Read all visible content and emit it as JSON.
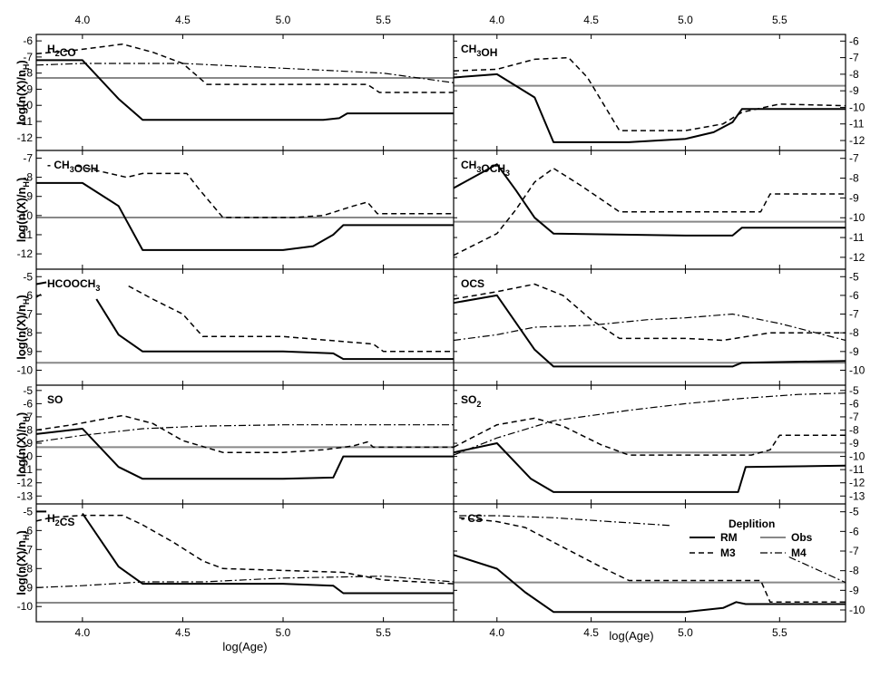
{
  "chart_data": {
    "type": "line",
    "xlabel": "log(Age)",
    "ylabel": "log(n(X)/n",
    "ylabel_sub": "H",
    "ylabel_end": ")",
    "xlim": [
      3.77,
      5.85
    ],
    "xticks": [
      4.0,
      4.5,
      5.0,
      5.5
    ],
    "xtick_labels": [
      "4.0",
      "4.5",
      "5.0",
      "5.5"
    ],
    "legend": {
      "title": "Deplition",
      "entries": [
        {
          "key": "RM",
          "label": "RM"
        },
        {
          "key": "Obs",
          "label": "Obs"
        },
        {
          "key": "M3",
          "label": "M3"
        },
        {
          "key": "M4",
          "label": "M4"
        }
      ]
    },
    "styles": {
      "RM": {
        "color": "#000000",
        "dash": "",
        "width": 2
      },
      "M3": {
        "color": "#000000",
        "dash": "6,4",
        "width": 1.5
      },
      "M4": {
        "color": "#000000",
        "dash": "8,3,2,3",
        "width": 1.2
      },
      "Obs": {
        "color": "#888888",
        "dash": "",
        "width": 2
      }
    },
    "panels": [
      {
        "label": "H",
        "sub": "2",
        "label_rest": "CO",
        "ylim": [
          -12.8,
          -5.6
        ],
        "yticks": [
          -6,
          -7,
          -8,
          -9,
          -10,
          -11,
          -12
        ],
        "obs": -8.3,
        "series": [
          {
            "name": "RM",
            "x": [
              3.77,
              4.0,
              4.18,
              4.3,
              5.0,
              5.2,
              5.28,
              5.32,
              5.85
            ],
            "y": [
              -7.2,
              -7.2,
              -9.6,
              -10.9,
              -10.9,
              -10.9,
              -10.8,
              -10.5,
              -10.5
            ]
          },
          {
            "name": "M3",
            "x": [
              3.77,
              3.95,
              4.2,
              4.35,
              4.5,
              4.62,
              5.0,
              5.42,
              5.48,
              5.85
            ],
            "y": [
              -6.8,
              -6.6,
              -6.2,
              -6.7,
              -7.4,
              -8.7,
              -8.7,
              -8.7,
              -9.2,
              -9.2
            ]
          },
          {
            "name": "M4",
            "x": [
              3.77,
              4.0,
              4.5,
              5.0,
              5.5,
              5.85
            ],
            "y": [
              -7.5,
              -7.4,
              -7.4,
              -7.7,
              -8.0,
              -8.6
            ]
          }
        ]
      },
      {
        "label": "CH",
        "sub": "3",
        "label_rest": "OH",
        "ylim": [
          -12.6,
          -5.6
        ],
        "yticks": [
          -6,
          -7,
          -8,
          -9,
          -10,
          -11,
          -12
        ],
        "obs": -8.7,
        "series": [
          {
            "name": "RM",
            "x": [
              3.77,
              4.0,
              4.2,
              4.3,
              4.7,
              5.0,
              5.15,
              5.25,
              5.3,
              5.85
            ],
            "y": [
              -8.2,
              -8.0,
              -9.4,
              -12.1,
              -12.1,
              -11.9,
              -11.5,
              -10.9,
              -10.1,
              -10.1
            ]
          },
          {
            "name": "M3",
            "x": [
              3.77,
              4.0,
              4.2,
              4.38,
              4.48,
              4.65,
              5.0,
              5.2,
              5.3,
              5.5,
              5.85
            ],
            "y": [
              -7.8,
              -7.7,
              -7.1,
              -7.0,
              -8.2,
              -11.4,
              -11.4,
              -11.0,
              -10.3,
              -9.8,
              -9.9
            ]
          }
        ]
      },
      {
        "label": "CH",
        "sub": "3",
        "label_rest": "OCH",
        "label_prefix": "- ",
        "ylim": [
          -12.8,
          -6.6
        ],
        "yticks": [
          -7,
          -8,
          -9,
          -10,
          -11,
          -12
        ],
        "obs": -10.1,
        "series": [
          {
            "name": "RM",
            "x": [
              3.77,
              4.0,
              4.18,
              4.3,
              5.0,
              5.15,
              5.25,
              5.3,
              5.85
            ],
            "y": [
              -8.3,
              -8.3,
              -9.5,
              -11.8,
              -11.8,
              -11.6,
              -11.0,
              -10.5,
              -10.5
            ]
          },
          {
            "name": "M3",
            "x": [
              3.97,
              4.05,
              4.22,
              4.3,
              4.4,
              4.52,
              4.58,
              4.7,
              5.05,
              5.2,
              5.35,
              5.42,
              5.47,
              5.85
            ],
            "y": [
              -7.4,
              -7.6,
              -8.0,
              -7.8,
              -7.8,
              -7.8,
              -8.6,
              -10.1,
              -10.1,
              -10.0,
              -9.5,
              -9.3,
              -9.9,
              -9.9
            ]
          }
        ]
      },
      {
        "label": "CH",
        "sub": "3",
        "label_rest": "OCH",
        "sub2": "3",
        "ylim": [
          -12.6,
          -6.6
        ],
        "yticks": [
          -7,
          -8,
          -9,
          -10,
          -11,
          -12
        ],
        "obs": -10.2,
        "series": [
          {
            "name": "RM",
            "x": [
              3.77,
              4.0,
              4.1,
              4.2,
              4.3,
              5.0,
              5.25,
              5.3,
              5.85
            ],
            "y": [
              -8.5,
              -7.3,
              -8.6,
              -10.0,
              -10.8,
              -10.9,
              -10.9,
              -10.5,
              -10.5
            ]
          },
          {
            "name": "M3",
            "x": [
              3.77,
              4.0,
              4.1,
              4.2,
              4.3,
              4.45,
              4.65,
              5.0,
              5.4,
              5.45,
              5.85
            ],
            "y": [
              -11.9,
              -10.8,
              -9.6,
              -8.2,
              -7.5,
              -8.4,
              -9.7,
              -9.7,
              -9.7,
              -8.8,
              -8.8
            ]
          }
        ]
      },
      {
        "label": "HCOOCH",
        "sub": "3",
        "label_rest": "",
        "ylim": [
          -10.8,
          -4.6
        ],
        "yticks": [
          -5,
          -6,
          -7,
          -8,
          -9,
          -10
        ],
        "obs": -9.6,
        "series": [
          {
            "name": "RM",
            "x": [
              4.07,
              4.18,
              4.3,
              5.0,
              5.25,
              5.3,
              5.85
            ],
            "y": [
              -6.2,
              -8.1,
              -9.0,
              -9.0,
              -9.1,
              -9.4,
              -9.4
            ]
          },
          {
            "name": "RM",
            "x": [
              3.77,
              3.82
            ],
            "y": [
              -5.4,
              -5.3
            ]
          },
          {
            "name": "M3",
            "x": [
              3.77,
              3.8
            ],
            "y": [
              -6.1,
              -5.9
            ]
          },
          {
            "name": "M3",
            "x": [
              4.23,
              4.35,
              4.5,
              4.6,
              5.0,
              5.45,
              5.5,
              5.85
            ],
            "y": [
              -5.5,
              -6.2,
              -7.0,
              -8.2,
              -8.2,
              -8.6,
              -9.0,
              -9.0
            ]
          }
        ]
      },
      {
        "label": "OCS",
        "sub": "",
        "label_rest": "",
        "ylim": [
          -10.8,
          -4.6
        ],
        "yticks": [
          -5,
          -6,
          -7,
          -8,
          -9,
          -10
        ],
        "obs": -9.6,
        "series": [
          {
            "name": "RM",
            "x": [
              3.77,
              4.0,
              4.2,
              4.3,
              5.0,
              5.25,
              5.3,
              5.85
            ],
            "y": [
              -6.4,
              -6.0,
              -8.9,
              -9.8,
              -9.8,
              -9.8,
              -9.6,
              -9.5
            ]
          },
          {
            "name": "M3",
            "x": [
              3.77,
              4.0,
              4.2,
              4.35,
              4.5,
              4.65,
              5.0,
              5.2,
              5.45,
              5.85
            ],
            "y": [
              -6.2,
              -5.8,
              -5.4,
              -6.0,
              -7.3,
              -8.3,
              -8.3,
              -8.4,
              -8.0,
              -8.0
            ]
          },
          {
            "name": "M4",
            "x": [
              3.77,
              4.0,
              4.2,
              4.5,
              4.8,
              5.0,
              5.25,
              5.5,
              5.85
            ],
            "y": [
              -8.4,
              -8.1,
              -7.7,
              -7.6,
              -7.3,
              -7.2,
              -7.0,
              -7.5,
              -8.4
            ]
          }
        ]
      },
      {
        "label": "SO",
        "sub": "",
        "label_rest": "",
        "ylim": [
          -13.6,
          -4.6
        ],
        "yticks": [
          -5,
          -6,
          -7,
          -8,
          -9,
          -10,
          -11,
          -12,
          -13
        ],
        "obs": -9.3,
        "series": [
          {
            "name": "RM",
            "x": [
              3.77,
              4.0,
              4.18,
              4.3,
              5.0,
              5.25,
              5.3,
              5.85
            ],
            "y": [
              -8.3,
              -7.9,
              -10.8,
              -11.7,
              -11.7,
              -11.6,
              -10.0,
              -10.0
            ]
          },
          {
            "name": "M3",
            "x": [
              3.77,
              3.95,
              4.2,
              4.35,
              4.5,
              4.7,
              5.0,
              5.2,
              5.35,
              5.42,
              5.45,
              5.85
            ],
            "y": [
              -8.0,
              -7.6,
              -6.9,
              -7.5,
              -8.8,
              -9.7,
              -9.7,
              -9.5,
              -9.2,
              -8.9,
              -9.3,
              -9.3
            ]
          },
          {
            "name": "M4",
            "x": [
              3.77,
              4.0,
              4.3,
              4.6,
              5.0,
              5.5,
              5.85
            ],
            "y": [
              -8.9,
              -8.4,
              -7.9,
              -7.7,
              -7.6,
              -7.6,
              -7.6
            ]
          }
        ]
      },
      {
        "label": "SO",
        "sub": "2",
        "label_rest": "",
        "ylim": [
          -13.6,
          -4.6
        ],
        "yticks": [
          -5,
          -6,
          -7,
          -8,
          -9,
          -10,
          -11,
          -12,
          -13
        ],
        "obs": -9.7,
        "series": [
          {
            "name": "RM",
            "x": [
              3.77,
              4.0,
              4.18,
              4.3,
              5.0,
              5.28,
              5.32,
              5.85
            ],
            "y": [
              -9.7,
              -9.0,
              -11.7,
              -12.7,
              -12.7,
              -12.7,
              -10.8,
              -10.7
            ]
          },
          {
            "name": "M3",
            "x": [
              3.77,
              4.0,
              4.2,
              4.35,
              4.55,
              4.7,
              5.0,
              5.35,
              5.45,
              5.5,
              5.85
            ],
            "y": [
              -9.3,
              -7.6,
              -7.1,
              -7.7,
              -9.1,
              -9.9,
              -9.9,
              -9.9,
              -9.5,
              -8.4,
              -8.4
            ]
          },
          {
            "name": "M4",
            "x": [
              3.77,
              4.0,
              4.3,
              4.7,
              5.0,
              5.3,
              5.6,
              5.85
            ],
            "y": [
              -9.9,
              -8.6,
              -7.3,
              -6.5,
              -6.0,
              -5.6,
              -5.3,
              -5.2
            ]
          }
        ]
      },
      {
        "label": "H",
        "sub": "2",
        "label_rest": "CS",
        "ylim": [
          -10.8,
          -4.6
        ],
        "yticks": [
          -5,
          -6,
          -7,
          -8,
          -9,
          -10
        ],
        "obs": -9.8,
        "series": [
          {
            "name": "RM",
            "x": [
              3.77,
              3.82
            ],
            "y": [
              -5.0,
              -5.0
            ]
          },
          {
            "name": "RM",
            "x": [
              4.0,
              4.18,
              4.3,
              5.0,
              5.25,
              5.3,
              5.85
            ],
            "y": [
              -5.1,
              -7.9,
              -8.8,
              -8.8,
              -8.9,
              -9.3,
              -9.3
            ]
          },
          {
            "name": "M3",
            "x": [
              3.77,
              3.85,
              4.0,
              4.2,
              4.3,
              4.45,
              4.6,
              4.7,
              5.0,
              5.3,
              5.5,
              5.85
            ],
            "y": [
              -5.5,
              -5.3,
              -5.2,
              -5.2,
              -5.7,
              -6.6,
              -7.6,
              -8.0,
              -8.1,
              -8.2,
              -8.6,
              -8.8
            ]
          },
          {
            "name": "M4",
            "x": [
              3.77,
              4.0,
              4.3,
              4.6,
              5.0,
              5.5,
              5.85
            ],
            "y": [
              -9.0,
              -8.9,
              -8.7,
              -8.7,
              -8.5,
              -8.4,
              -8.7
            ]
          }
        ]
      },
      {
        "label": "CS",
        "sub": "",
        "label_rest": "",
        "label_prefix": "- ",
        "ylim": [
          -10.6,
          -4.6
        ],
        "yticks": [
          -5,
          -6,
          -7,
          -8,
          -9,
          -10
        ],
        "obs": -8.6,
        "series": [
          {
            "name": "RM",
            "x": [
              3.77,
              4.0,
              4.15,
              4.3,
              5.0,
              5.2,
              5.27,
              5.32,
              5.85
            ],
            "y": [
              -7.2,
              -7.9,
              -9.1,
              -10.1,
              -10.1,
              -9.9,
              -9.6,
              -9.7,
              -9.7
            ]
          },
          {
            "name": "M3",
            "x": [
              3.8,
              4.0,
              4.15,
              4.35,
              4.55,
              4.7,
              5.0,
              5.4,
              5.45,
              5.85
            ],
            "y": [
              -5.3,
              -5.5,
              -5.8,
              -6.8,
              -7.8,
              -8.5,
              -8.5,
              -8.5,
              -9.6,
              -9.6
            ]
          },
          {
            "name": "M4",
            "x": [
              3.8,
              4.0,
              4.3,
              4.6,
              4.92
            ],
            "y": [
              -5.2,
              -5.2,
              -5.3,
              -5.5,
              -5.7
            ]
          },
          {
            "name": "M4",
            "x": [
              5.55,
              5.85
            ],
            "y": [
              -7.3,
              -8.6
            ]
          }
        ]
      }
    ]
  }
}
